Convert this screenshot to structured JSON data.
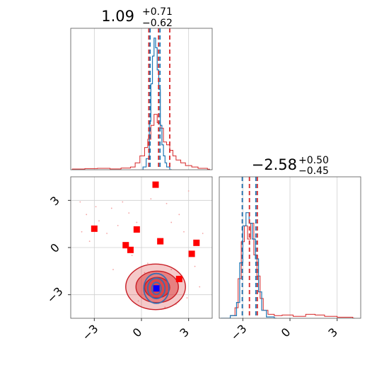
{
  "chart_data": {
    "type": "corner",
    "parameters": [
      {
        "name": "",
        "median": 1.09,
        "plus": "+0.71",
        "minus": "−0.62",
        "median_label": "1.09",
        "range": [
          -4.5,
          4.5
        ]
      },
      {
        "name": "",
        "median": -2.58,
        "plus": "+0.50",
        "minus": "−0.45",
        "median_label": "−2.58",
        "range": [
          -4.5,
          4.5
        ]
      }
    ],
    "titles": [
      "1.09",
      "−2.58"
    ],
    "ticks": [
      -3,
      0,
      3
    ],
    "tick_labels": [
      "−3",
      "0",
      "3"
    ],
    "grid": true,
    "series": [
      {
        "name": "",
        "color": "#1f77b4",
        "role": "narrow posterior"
      },
      {
        "name": "",
        "color": "#d62728",
        "role": "broad posterior"
      }
    ],
    "vlines": {
      "p1_red": [
        0.47,
        1.09,
        1.8
      ],
      "p1_blue": [
        0.55,
        1.18
      ],
      "p2_red": [
        -3.03,
        -2.58,
        -2.08
      ],
      "p2_blue": [
        -3.03,
        -2.17
      ]
    },
    "hist_p1_blue": {
      "x": [
        0.1,
        0.3,
        0.5,
        0.6,
        0.7,
        0.8,
        0.9,
        1.0,
        1.1,
        1.2,
        1.3,
        1.4,
        1.5,
        1.6,
        1.8
      ],
      "y": [
        0.02,
        0.08,
        0.35,
        0.62,
        0.82,
        0.95,
        0.88,
        0.72,
        0.58,
        0.32,
        0.18,
        0.1,
        0.05,
        0.02,
        0.0
      ]
    },
    "hist_p1_red": {
      "x": [
        -4.4,
        -3.6,
        -2.8,
        -2.0,
        -1.3,
        -0.7,
        -0.4,
        -0.1,
        0.2,
        0.4,
        0.6,
        0.8,
        1.0,
        1.2,
        1.4,
        1.6,
        1.8,
        2.0,
        2.2,
        2.5,
        2.8,
        3.2,
        3.6,
        4.2
      ],
      "y": [
        0.005,
        0.008,
        0.01,
        0.006,
        0.012,
        0.02,
        0.05,
        0.1,
        0.16,
        0.22,
        0.32,
        0.4,
        0.34,
        0.3,
        0.2,
        0.18,
        0.14,
        0.1,
        0.07,
        0.05,
        0.03,
        0.02,
        0.01,
        0.004
      ]
    },
    "hist_p2_blue": {
      "x": [
        -4.4,
        -3.8,
        -3.4,
        -3.2,
        -3.0,
        -2.8,
        -2.6,
        -2.4,
        -2.2,
        -2.0,
        -1.8,
        -1.5,
        -1.0
      ],
      "y": [
        0.0,
        0.02,
        0.12,
        0.42,
        0.7,
        0.8,
        0.72,
        0.6,
        0.45,
        0.2,
        0.06,
        0.01,
        0.0
      ]
    },
    "hist_p2_red": {
      "x": [
        -4.4,
        -3.8,
        -3.5,
        -3.3,
        -3.1,
        -2.9,
        -2.7,
        -2.5,
        -2.3,
        -2.1,
        -1.9,
        -1.7,
        -1.4,
        -1.0,
        -0.5,
        0.2,
        1.0,
        1.6,
        2.2,
        3.0,
        4.0
      ],
      "y": [
        0.0,
        0.02,
        0.08,
        0.3,
        0.58,
        0.7,
        0.6,
        0.72,
        0.48,
        0.32,
        0.15,
        0.06,
        0.03,
        0.02,
        0.025,
        0.015,
        0.03,
        0.025,
        0.015,
        0.008,
        0.0
      ]
    },
    "markers_red": [
      {
        "x": 0.9,
        "y": 4.0
      },
      {
        "x": -3.0,
        "y": 1.2
      },
      {
        "x": -0.3,
        "y": 1.15
      },
      {
        "x": -1.0,
        "y": 0.15
      },
      {
        "x": -0.7,
        "y": -0.15
      },
      {
        "x": 1.2,
        "y": 0.4
      },
      {
        "x": 3.5,
        "y": 0.3
      },
      {
        "x": 3.2,
        "y": -0.4
      },
      {
        "x": 2.4,
        "y": -2.0
      }
    ],
    "marker_blue": {
      "x": 0.95,
      "y": -2.6
    },
    "contour_red": [
      {
        "cx": 0.9,
        "cy": -2.5,
        "rx": 1.9,
        "ry": 1.45,
        "opacity": 0.25
      },
      {
        "cx": 1.0,
        "cy": -2.5,
        "rx": 1.35,
        "ry": 1.0,
        "opacity": 0.45
      },
      {
        "cx": 1.0,
        "cy": -2.55,
        "rx": 0.8,
        "ry": 0.65,
        "opacity": 0.65
      }
    ],
    "contour_blue": [
      {
        "cx": 0.95,
        "cy": -2.6,
        "rx": 0.8,
        "ry": 0.95
      },
      {
        "cx": 0.95,
        "cy": -2.6,
        "rx": 0.55,
        "ry": 0.65
      },
      {
        "cx": 0.95,
        "cy": -2.6,
        "rx": 0.3,
        "ry": 0.38
      }
    ],
    "scatter_faint": [
      [
        -3.8,
        1.0
      ],
      [
        -3.5,
        2.1
      ],
      [
        -3.3,
        0.4
      ],
      [
        -2.7,
        1.7
      ],
      [
        -2.2,
        0.9
      ],
      [
        -1.9,
        2.5
      ],
      [
        -1.5,
        1.4
      ],
      [
        -1.2,
        2.9
      ],
      [
        -0.8,
        2.2
      ],
      [
        -0.3,
        1.6
      ],
      [
        -0.6,
        -0.5
      ],
      [
        -1.8,
        -1.4
      ],
      [
        0.4,
        -1.0
      ],
      [
        1.6,
        2.8
      ],
      [
        2.4,
        2.1
      ],
      [
        2.7,
        1.0
      ],
      [
        3.0,
        3.6
      ],
      [
        3.4,
        -1.2
      ],
      [
        3.7,
        -2.5
      ],
      [
        2.9,
        -3.2
      ],
      [
        1.9,
        -1.4
      ],
      [
        0.2,
        -1.6
      ],
      [
        -0.2,
        -3.4
      ],
      [
        1.5,
        -3.8
      ],
      [
        2.2,
        -3.6
      ],
      [
        3.9,
        0.9
      ],
      [
        -2.9,
        2.6
      ],
      [
        -3.9,
        2.9
      ],
      [
        0.6,
        3.1
      ],
      [
        1.9,
        1.6
      ]
    ]
  }
}
